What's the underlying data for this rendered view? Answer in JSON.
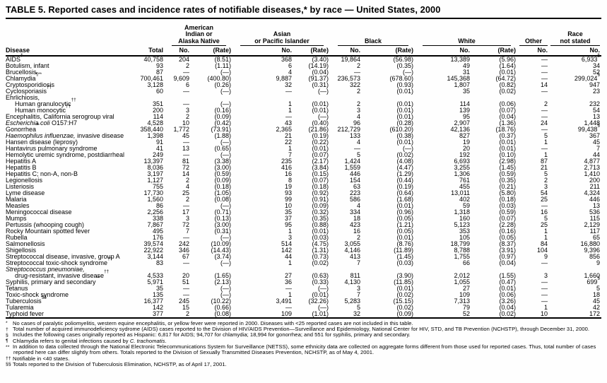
{
  "title": "TABLE 5. Reported cases and incidence rates of notifiable diseases,* by race — United States, 2000",
  "header": {
    "disease_label": "Disease",
    "total_label": "Total",
    "groups": [
      {
        "lines": [
          "American",
          "Indian or",
          "Alaska Native"
        ],
        "cols": 2,
        "subs": [
          "No.",
          "(Rate)"
        ]
      },
      {
        "lines": [
          "Asian",
          "or Pacific Islander"
        ],
        "cols": 2,
        "subs": [
          "No.",
          "(Rate)"
        ]
      },
      {
        "lines": [
          "Black"
        ],
        "cols": 2,
        "subs": [
          "No.",
          "(Rate)"
        ]
      },
      {
        "lines": [
          "White"
        ],
        "cols": 2,
        "subs": [
          "No.",
          "(Rate)"
        ]
      },
      {
        "lines": [
          "Other"
        ],
        "cols": 1,
        "subs": [
          "No."
        ]
      },
      {
        "lines": [
          "Race",
          "not stated"
        ],
        "cols": 1,
        "subs": [
          "No."
        ]
      }
    ]
  },
  "rows": [
    {
      "n": "AIDS",
      "sup": "†",
      "t": "40,758",
      "c": [
        "204",
        "(8.51)",
        "368",
        "(3.40)",
        "19,864",
        "(56.98)",
        "13,389",
        "(5.96)",
        "—",
        "6,933"
      ],
      "ns": "§"
    },
    {
      "n": "Botulism, infant",
      "t": "93",
      "c": [
        "2",
        "(1.11)",
        "6",
        "(14.19)",
        "2",
        "(0.35)",
        "49",
        "(1.64)",
        "—",
        "34"
      ]
    },
    {
      "n": "Brucellosis",
      "t": "87",
      "c": [
        "—",
        "(—)",
        "4",
        "(0.04)",
        "—",
        "(—)",
        "31",
        "(0.01)",
        "—",
        "52"
      ]
    },
    {
      "n": "Chlamydia",
      "sup": "¶**",
      "t": "700,461",
      "c": [
        "9,609",
        "(400.80)",
        "9,887",
        "(91.37)",
        "236,573",
        "(678.60)",
        "145,368",
        "(64.72)",
        "—",
        "299,024"
      ],
      "ns": "§"
    },
    {
      "n": "Cryptosporidiosis",
      "t": "3,128",
      "c": [
        "6",
        "(0.26)",
        "32",
        "(0.31)",
        "322",
        "(0.93)",
        "1,807",
        "(0.82)",
        "14",
        "947"
      ]
    },
    {
      "n": "Cyclosporiasis",
      "sup": "††",
      "t": "60",
      "c": [
        "—",
        "(—)",
        "—",
        "(—)",
        "2",
        "(0.01)",
        "35",
        "(0.02)",
        "—",
        "23"
      ]
    },
    {
      "n": "Ehrlichiosis,",
      "sub": true,
      "t": "",
      "c": [
        "",
        "",
        "",
        "",
        "",
        "",
        "",
        "",
        "",
        ""
      ]
    },
    {
      "n": "Human granulocytic",
      "sup": "††",
      "ind": 1,
      "t": "351",
      "c": [
        "—",
        "(—)",
        "1",
        "(0.01)",
        "2",
        "(0.01)",
        "114",
        "(0.06)",
        "2",
        "232"
      ]
    },
    {
      "n": "Human monocytic",
      "sup": "††",
      "ind": 1,
      "t": "200",
      "c": [
        "3",
        "(0.16)",
        "1",
        "(0.01)",
        "3",
        "(0.01)",
        "139",
        "(0.07)",
        "—",
        "54"
      ]
    },
    {
      "n": "Encephalitis, California serogroup viral",
      "t": "114",
      "c": [
        "2",
        "(0.09)",
        "—",
        "(—)",
        "4",
        "(0.01)",
        "95",
        "(0.04)",
        "—",
        "13"
      ]
    },
    {
      "it": "Escherichia coli",
      "n": " O157:H7",
      "t": "4,528",
      "c": [
        "10",
        "(0.42)",
        "43",
        "(0.40)",
        "96",
        "(0.28)",
        "2,907",
        "(1.36)",
        "24",
        "1,448"
      ]
    },
    {
      "n": "Gonorrhea",
      "sup": "**",
      "t": "358,440",
      "c": [
        "1,772",
        "(73.91)",
        "2,365",
        "(21.86)",
        "212,729",
        "(610.20)",
        "42,136",
        "(18.76)",
        "—",
        "99,438"
      ],
      "ns": "§"
    },
    {
      "it": "Haemophilus influenzae,",
      "n": " invasive disease",
      "t": "1,398",
      "c": [
        "45",
        "(1.88)",
        "21",
        "(0.19)",
        "133",
        "(0.38)",
        "827",
        "(0.37)",
        "5",
        "367"
      ]
    },
    {
      "n": "Hansen disease (leprosy)",
      "t": "91",
      "c": [
        "—",
        "(—)",
        "22",
        "(0.22)",
        "4",
        "(0.01)",
        "19",
        "(0.01)",
        "1",
        "45"
      ]
    },
    {
      "n": "Hantavirus pulmonary syndrome",
      "t": "41",
      "c": [
        "13",
        "(0.65)",
        "1",
        "(0.01)",
        "—",
        "(—)",
        "20",
        "(0.01)",
        "—",
        "7"
      ]
    },
    {
      "n": "Hemolytic uremic syndrome, postdiarrheal",
      "t": "249",
      "c": [
        "—",
        "(—)",
        "7",
        "(0.07)",
        "5",
        "(0.02)",
        "192",
        "(0.10)",
        "1",
        "44"
      ]
    },
    {
      "n": "Hepatitis A",
      "t": "13,397",
      "c": [
        "81",
        "(3.38)",
        "235",
        "(2.17)",
        "1,424",
        "(4.08)",
        "6,693",
        "(2.98)",
        "87",
        "4,877"
      ]
    },
    {
      "n": "Hepatitis B",
      "t": "8,036",
      "c": [
        "72",
        "(3.00)",
        "416",
        "(3.84)",
        "1,559",
        "(4.47)",
        "3,255",
        "(1.45)",
        "21",
        "2,713"
      ]
    },
    {
      "n": "Hepatitis C; non-A, non-B",
      "t": "3,197",
      "c": [
        "14",
        "(0.59)",
        "16",
        "(0.15)",
        "446",
        "(1.29)",
        "1,306",
        "(0.59)",
        "5",
        "1,410"
      ]
    },
    {
      "n": "Legionellosis",
      "t": "1,127",
      "c": [
        "2",
        "(0.09)",
        "8",
        "(0.07)",
        "154",
        "(0.44)",
        "761",
        "(0.35)",
        "2",
        "200"
      ]
    },
    {
      "n": "Listeriosis",
      "t": "755",
      "c": [
        "4",
        "(0.18)",
        "19",
        "(0.18)",
        "63",
        "(0.19)",
        "455",
        "(0.21)",
        "3",
        "211"
      ]
    },
    {
      "n": "Lyme disease",
      "t": "17,730",
      "c": [
        "25",
        "(1.05)",
        "93",
        "(0.92)",
        "223",
        "(0.64)",
        "13,011",
        "(5.80)",
        "54",
        "4,324"
      ]
    },
    {
      "n": "Malaria",
      "t": "1,560",
      "c": [
        "2",
        "(0.08)",
        "99",
        "(0.91)",
        "586",
        "(1.68)",
        "402",
        "(0.18)",
        "25",
        "446"
      ]
    },
    {
      "n": "Measles",
      "t": "86",
      "c": [
        "—",
        "(—)",
        "10",
        "(0.09)",
        "4",
        "(0.01)",
        "59",
        "(0.03)",
        "—",
        "13"
      ]
    },
    {
      "n": "Meningococcal disease",
      "t": "2,256",
      "c": [
        "17",
        "(0.71)",
        "35",
        "(0.32)",
        "334",
        "(0.96)",
        "1,318",
        "(0.59)",
        "16",
        "536"
      ]
    },
    {
      "n": "Mumps",
      "t": "338",
      "c": [
        "3",
        "(0.13)",
        "37",
        "(0.35)",
        "18",
        "(0.05)",
        "160",
        "(0.07)",
        "5",
        "115"
      ]
    },
    {
      "n": "Pertussis (whooping cough)",
      "t": "7,867",
      "c": [
        "72",
        "(3.00)",
        "95",
        "(0.88)",
        "423",
        "(1.21)",
        "5,123",
        "(2.28)",
        "25",
        "2,129"
      ]
    },
    {
      "n": "Rocky Mountain spotted fever",
      "t": "495",
      "c": [
        "7",
        "(0.31)",
        "1",
        "(0.01)",
        "16",
        "(0.05)",
        "353",
        "(0.16)",
        "1",
        "117"
      ]
    },
    {
      "n": "Rubella",
      "t": "176",
      "c": [
        "—",
        "(—)",
        "3",
        "(0.03)",
        "2",
        "(0.01)",
        "105",
        "(0.05)",
        "1",
        "65"
      ]
    },
    {
      "n": "Salmonellosis",
      "t": "39,574",
      "c": [
        "242",
        "(10.09)",
        "514",
        "(4.75)",
        "3,055",
        "(8.76)",
        "18,799",
        "(8.37)",
        "84",
        "16,880"
      ]
    },
    {
      "n": "Shigellosis",
      "t": "22,922",
      "c": [
        "346",
        "(14.43)",
        "142",
        "(1.31)",
        "4,146",
        "(11.89)",
        "8,788",
        "(3.91)",
        "104",
        "9,396"
      ]
    },
    {
      "n": "Streptococcal disease, invasive, group A",
      "t": "3,144",
      "c": [
        "67",
        "(3.74)",
        "44",
        "(0.73)",
        "413",
        "(1.45)",
        "1,755",
        "(0.97)",
        "9",
        "856"
      ]
    },
    {
      "n": "Streptococcal toxic-shock syndrome",
      "sup": "††",
      "t": "83",
      "c": [
        "—",
        "(—)",
        "1",
        "(0.02)",
        "7",
        "(0.03)",
        "66",
        "(0.04)",
        "—",
        "9"
      ]
    },
    {
      "it": "Streptococcus pneumoniae,",
      "n": "",
      "sub": true,
      "t": "",
      "c": [
        "",
        "",
        "",
        "",
        "",
        "",
        "",
        "",
        "",
        ""
      ]
    },
    {
      "n": "drug-resistant, invasive disease",
      "sup": "††",
      "ind": 1,
      "t": "4,533",
      "c": [
        "20",
        "(1.65)",
        "27",
        "(0.63)",
        "811",
        "(3.90)",
        "2,012",
        "(1.55)",
        "3",
        "1,660"
      ]
    },
    {
      "n": "Syphilis, primary and secondary",
      "sup": "**",
      "t": "5,971",
      "c": [
        "51",
        "(2.13)",
        "36",
        "(0.33)",
        "4,130",
        "(11.85)",
        "1,055",
        "(0.47)",
        "—",
        "699"
      ],
      "ns": "§"
    },
    {
      "n": "Tetanus",
      "t": "35",
      "c": [
        "—",
        "(—)",
        "—",
        "(—)",
        "3",
        "(0.01)",
        "27",
        "(0.01)",
        "—",
        "5"
      ]
    },
    {
      "n": "Toxic-shock syndrome",
      "t": "135",
      "c": [
        "—",
        "(—)",
        "1",
        "(0.01)",
        "7",
        "(0.02)",
        "109",
        "(0.06)",
        "—",
        "18"
      ]
    },
    {
      "n": "Tuberculosis",
      "sup": "§§",
      "t": "16,377",
      "c": [
        "245",
        "(10.22)",
        "3,491",
        "(32.26)",
        "5,283",
        "(15.15)",
        "7,313",
        "(3.26)",
        "—",
        "45"
      ]
    },
    {
      "n": "Tularemia",
      "t": "142",
      "c": [
        "15",
        "(0.66)",
        "—",
        "(—)",
        "5",
        "(0.02)",
        "79",
        "(0.04)",
        "1",
        "42"
      ]
    },
    {
      "n": "Typhoid fever",
      "t": "377",
      "c": [
        "2",
        "(0.08)",
        "109",
        "(1.01)",
        "32",
        "(0.09)",
        "52",
        "(0.02)",
        "10",
        "172"
      ]
    }
  ],
  "footnotes": [
    {
      "m": "*",
      "t": "No cases of paralytic poliomyelitis, western equine encephalitis, or yellow fever were reported in 2000. Diseases with <25 reported cases are not included in this table."
    },
    {
      "m": "†",
      "t": "Total number of acquired immunodeficiency sydrome (AIDS) cases reported to the Division of HIV/AIDS Prevention—Surveillance and Epidemiology, National Center for HIV, STD, and TB Prevention (NCHSTP), through December 31, 2000."
    },
    {
      "m": "§",
      "t": "Includes the following cases originally reported as Hispanic: 6,817 for AIDS; 94,707 for chlamydia; 18,994 for gonorrhea; and 551 for syphilis, primary and secondary."
    },
    {
      "m": "¶",
      "t": "Chlamydia refers to genital infections caused by ",
      "ti": "C. trachomatis",
      "t2": "."
    },
    {
      "m": "**",
      "t": "In addition to data collected through the National Electronic Telecommunications System for Surveillance (NETSS), some ethnicity data are collected on aggregate forms different from those used for reported cases. Thus, total number of cases reported here can differ slightly from others. Totals reported to the Division of Sexually Transmitted Diseases Prevention, NCHSTP, as of May 4, 2001."
    },
    {
      "m": "††",
      "t": "Notifiable in <40 states."
    },
    {
      "m": "§§",
      "t": "Totals reported to the Division of Tuberculosis Elimination, NCHSTP, as of April 17, 2001."
    }
  ]
}
